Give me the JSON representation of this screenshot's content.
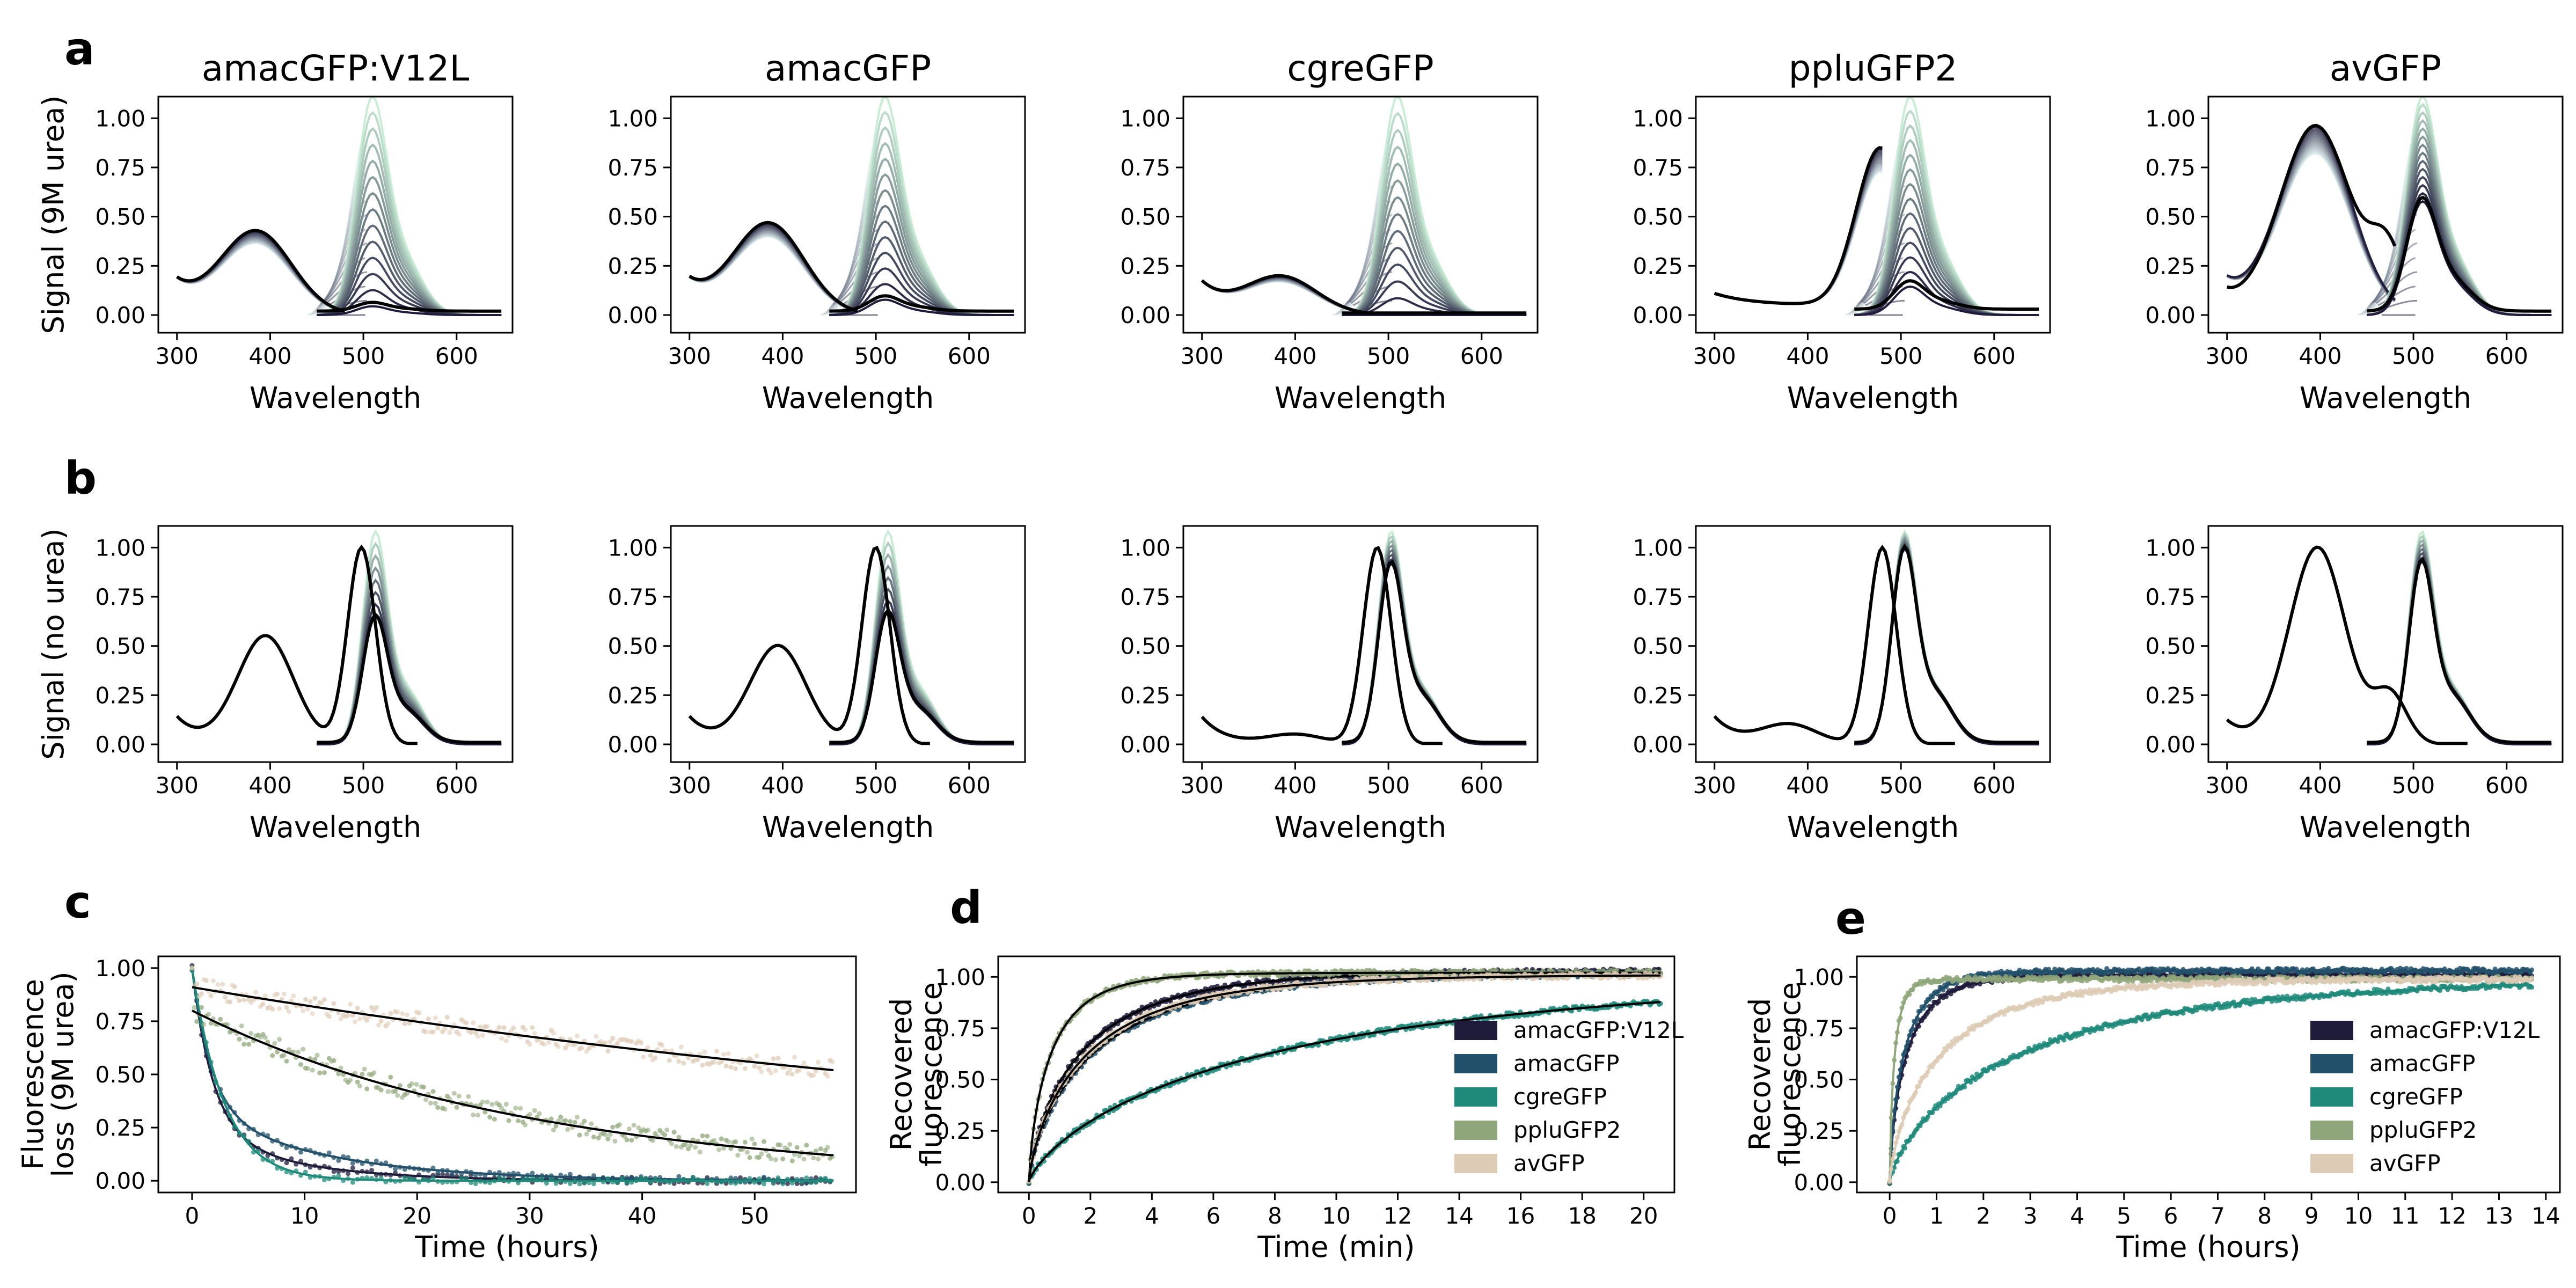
{
  "panel_labels": [
    "a",
    "b",
    "c",
    "d",
    "e"
  ],
  "colors": {
    "amacGFP:V12L": "#1f1c3b",
    "amacGFP": "#22506a",
    "cgreGFP": "#1f8a7a",
    "ppluGFP2": "#8fa67a",
    "avGFP": "#ddcbb5",
    "light_mint": "#c8ecd6",
    "fit": "#000000"
  },
  "chart_data": [
    {
      "id": "a",
      "type": "line",
      "subtitles": [
        "amacGFP:V12L",
        "amacGFP",
        "cgreGFP",
        "ppluGFP2",
        "avGFP"
      ],
      "xlabel": "Wavelength",
      "ylabel": "Signal (9M urea)",
      "xlim": [
        280,
        660
      ],
      "ylim": [
        -0.09,
        1.11
      ],
      "xticks": [
        300,
        400,
        500,
        600
      ],
      "yticks": [
        "0.00",
        "0.25",
        "0.50",
        "0.75",
        "1.00"
      ],
      "series": [
        {
          "panel": 0,
          "abs_peak": 385,
          "abs_final": 0.42,
          "em_start_final": 0.02,
          "em_peak_max": 1.0,
          "em_final": 0.04
        },
        {
          "panel": 1,
          "abs_peak": 385,
          "abs_final": 0.46,
          "em_start_final": 0.02,
          "em_peak_max": 1.0,
          "em_final": 0.07
        },
        {
          "panel": 2,
          "abs_peak": 385,
          "abs_final": 0.19,
          "em_start_final": 0.01,
          "em_peak_max": 1.0,
          "em_final": 0.0
        },
        {
          "panel": 3,
          "abs_peak": 478,
          "abs_final": 0.8,
          "em_start_final": 0.03,
          "em_peak_max": 1.0,
          "em_final": 0.13
        },
        {
          "panel": 4,
          "abs_peak": 395,
          "abs_final": 0.96,
          "em_start_final": 0.02,
          "em_peak_max": 1.0,
          "em_final": 0.52
        }
      ]
    },
    {
      "id": "b",
      "type": "line",
      "xlabel": "Wavelength",
      "ylabel": "Signal (no urea)",
      "xlim": [
        280,
        660
      ],
      "ylim": [
        -0.09,
        1.11
      ],
      "xticks": [
        300,
        400,
        500,
        600
      ],
      "yticks": [
        "0.00",
        "0.25",
        "0.50",
        "0.75",
        "1.00"
      ],
      "series": [
        {
          "panel": 0,
          "abs_peak1": 395,
          "abs_h1": 0.55,
          "abs_peak2": 498,
          "abs_h2": 1.0,
          "em_peak": 512,
          "em_final": 0.6
        },
        {
          "panel": 1,
          "abs_peak1": 395,
          "abs_h1": 0.5,
          "abs_peak2": 500,
          "abs_h2": 1.0,
          "em_peak": 512,
          "em_final": 0.62
        },
        {
          "panel": 2,
          "abs_peak1": 400,
          "abs_h1": 0.05,
          "abs_peak2": 488,
          "abs_h2": 1.0,
          "em_peak": 502,
          "em_final": 0.85
        },
        {
          "panel": 3,
          "abs_peak1": 380,
          "abs_h1": 0.1,
          "abs_peak2": 480,
          "abs_h2": 1.0,
          "em_peak": 503,
          "em_final": 0.92
        },
        {
          "panel": 4,
          "abs_peak1": 397,
          "abs_h1": 1.0,
          "abs_peak2": 475,
          "abs_h2": 0.25,
          "em_peak": 508,
          "em_final": 0.86
        }
      ]
    },
    {
      "id": "c",
      "type": "scatter",
      "xlabel": "Time (hours)",
      "ylabel": [
        "Fluorescence",
        "loss (9M urea)"
      ],
      "xlim": [
        -3,
        59
      ],
      "ylim": [
        -0.055,
        1.055
      ],
      "xticks": [
        0,
        10,
        20,
        30,
        40,
        50
      ],
      "yticks": [
        "0.00",
        "0.25",
        "0.50",
        "0.75",
        "1.00"
      ],
      "series": [
        {
          "key": "amacGFP:V12L",
          "decay": "double",
          "a1": 0.75,
          "k1": 0.55,
          "k2": 0.12,
          "f": 0.0
        },
        {
          "key": "amacGFP",
          "decay": "double",
          "a1": 0.65,
          "k1": 0.6,
          "k2": 0.09,
          "f": 0.0
        },
        {
          "key": "cgreGFP",
          "decay": "single",
          "k1": 0.35,
          "f": 0.0
        },
        {
          "key": "ppluGFP2",
          "decay": "linear-exp",
          "start": 0.8,
          "end": 0.12
        },
        {
          "key": "avGFP",
          "decay": "linear-exp",
          "start": 0.91,
          "end": 0.52
        }
      ]
    },
    {
      "id": "d",
      "type": "scatter",
      "xlabel": "Time (min)",
      "ylabel": [
        "Recovered",
        "fluorescence"
      ],
      "xlim": [
        -1,
        21
      ],
      "ylim": [
        -0.05,
        1.1
      ],
      "xticks": [
        0,
        2,
        4,
        6,
        8,
        10,
        12,
        14,
        16,
        18,
        20
      ],
      "yticks": [
        "0.00",
        "0.25",
        "0.50",
        "0.75",
        "1.00"
      ],
      "legend": [
        "amacGFP:V12L",
        "amacGFP",
        "cgreGFP",
        "ppluGFP2",
        "avGFP"
      ],
      "legend_position": "lower-right",
      "series": [
        {
          "key": "amacGFP:V12L",
          "k": 0.55,
          "end": 1.03
        },
        {
          "key": "amacGFP",
          "k": 0.45,
          "end": 1.02
        },
        {
          "key": "cgreGFP",
          "k": 0.12,
          "end": 1.02
        },
        {
          "key": "ppluGFP2",
          "k": 1.3,
          "end": 1.02
        },
        {
          "key": "avGFP",
          "k": 0.5,
          "end": 1.01
        }
      ]
    },
    {
      "id": "e",
      "type": "scatter",
      "xlabel": "Time (hours)",
      "ylabel": [
        "Recovered",
        "fluorescence"
      ],
      "xlim": [
        -0.7,
        14.3
      ],
      "ylim": [
        -0.05,
        1.1
      ],
      "xticks": [
        0,
        1,
        2,
        3,
        4,
        5,
        6,
        7,
        8,
        9,
        10,
        11,
        12,
        13,
        14
      ],
      "yticks": [
        "0.00",
        "0.25",
        "0.50",
        "0.75",
        "1.00"
      ],
      "legend": [
        "amacGFP:V12L",
        "amacGFP",
        "cgreGFP",
        "ppluGFP2",
        "avGFP"
      ],
      "legend_position": "lower-right",
      "series": [
        {
          "key": "amacGFP:V12L",
          "k": 2.6,
          "end": 1.01
        },
        {
          "key": "amacGFP",
          "k": 3.0,
          "end": 1.03
        },
        {
          "key": "cgreGFP",
          "k": 0.35,
          "end": 1.0
        },
        {
          "key": "ppluGFP2",
          "k": 9.0,
          "end": 0.99
        },
        {
          "key": "avGFP",
          "k": 0.9,
          "end": 0.99
        }
      ]
    }
  ]
}
